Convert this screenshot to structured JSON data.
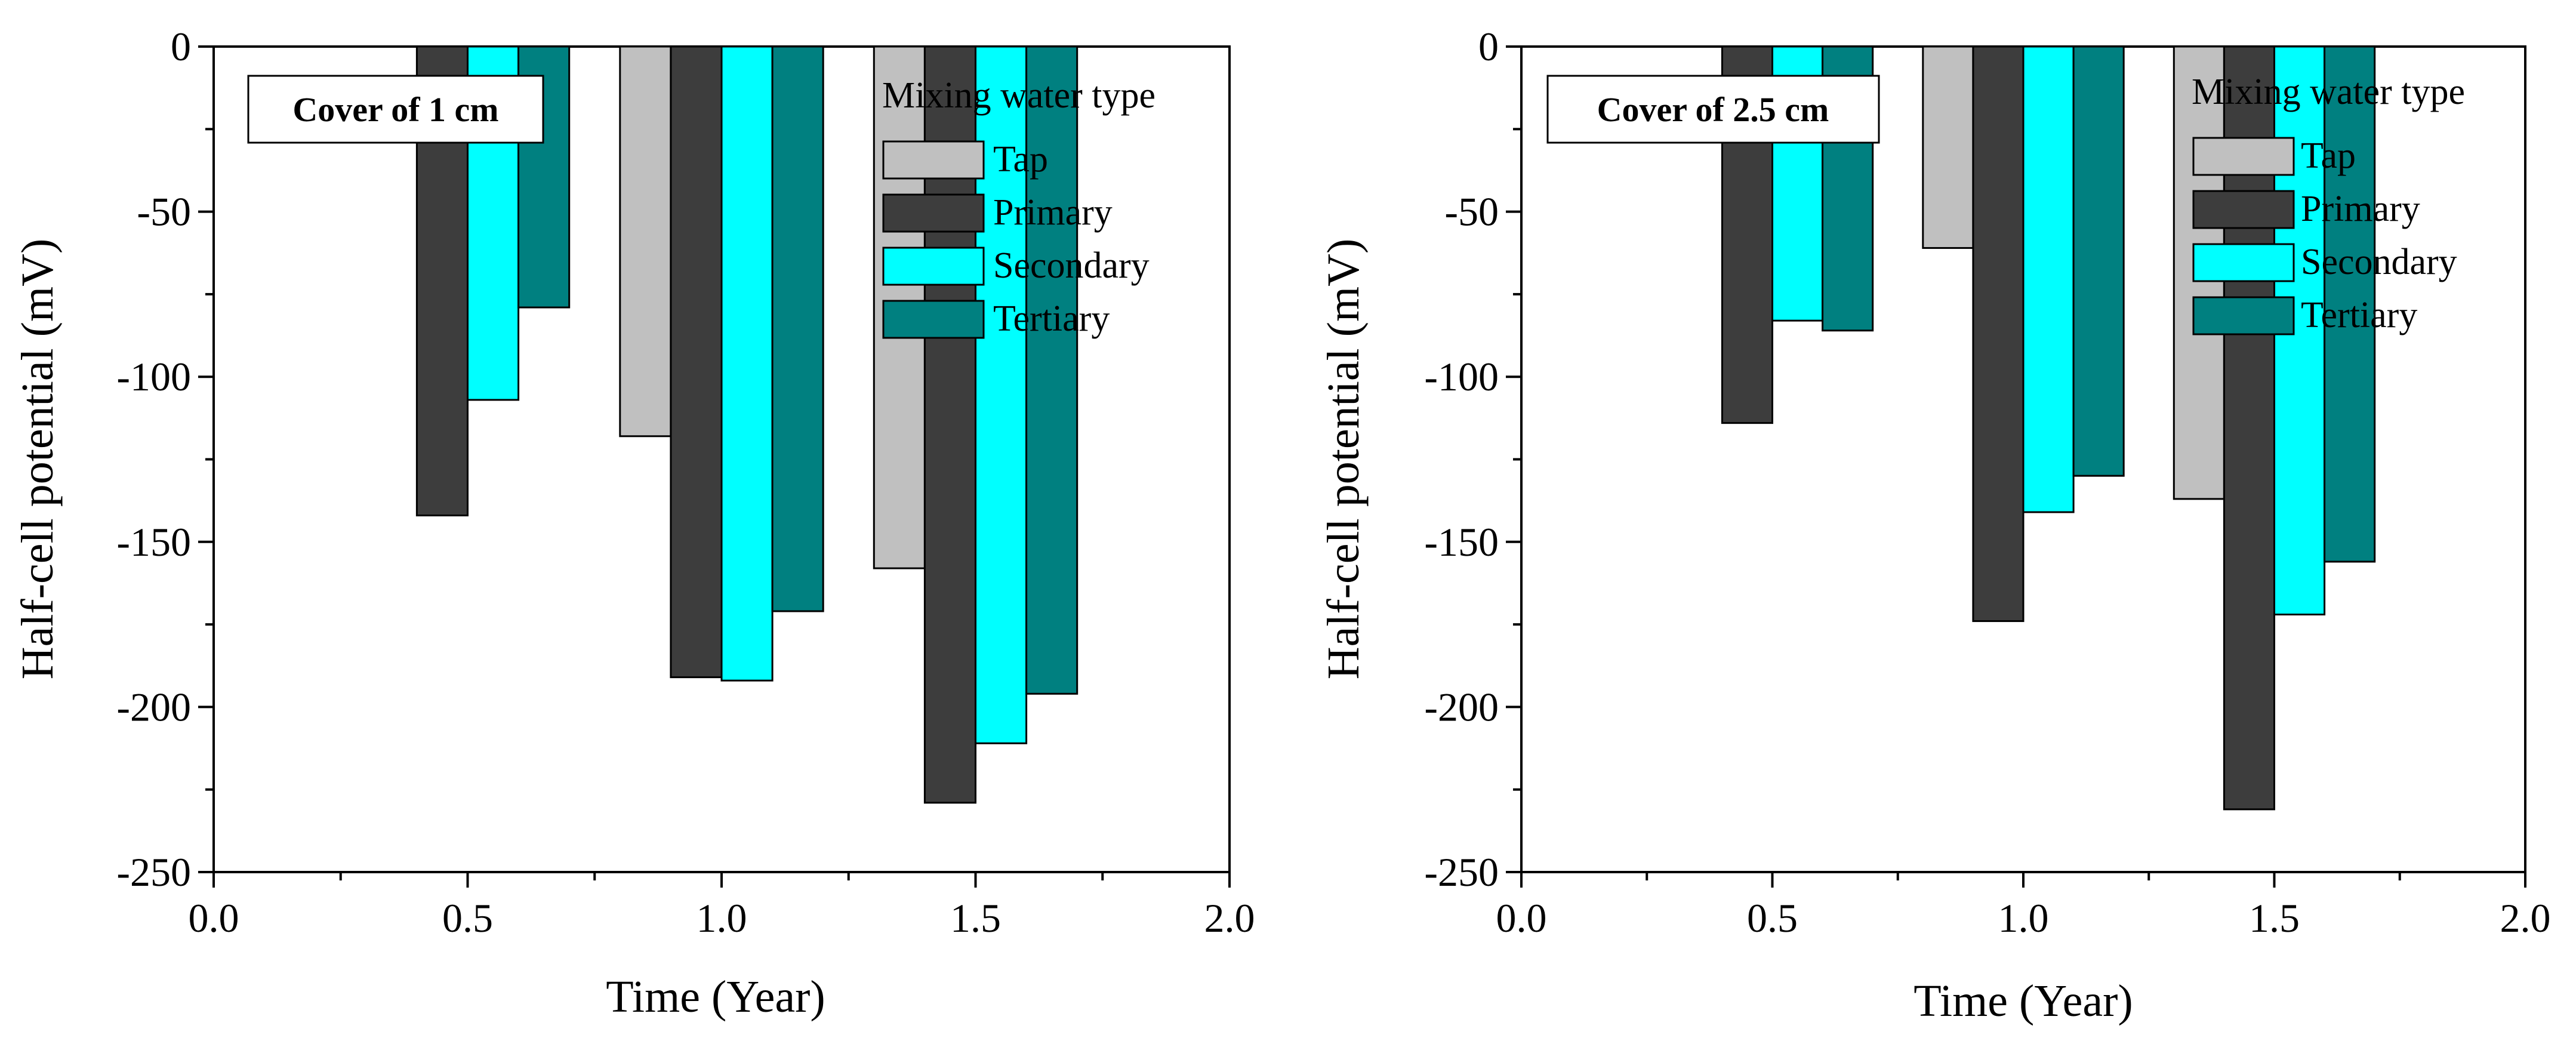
{
  "chart_data": [
    {
      "type": "bar",
      "panel": "left",
      "annotation": "Cover of 1 cm",
      "xlabel": "Time (Year)",
      "ylabel": "Half-cell potential (mV)",
      "xlim": [
        0.0,
        2.0
      ],
      "ylim": [
        -250,
        0
      ],
      "x_ticks": [
        "0.0",
        "0.5",
        "1.0",
        "1.5",
        "2.0"
      ],
      "y_ticks": [
        "0",
        "-50",
        "-100",
        "-150",
        "-200",
        "-250"
      ],
      "legend_title": "Mixing water type",
      "legend_position": "top-right",
      "bar_width": 0.1,
      "series": [
        {
          "name": "Tap",
          "color": "#c0c0c0",
          "x": [
            0.85,
            1.35
          ],
          "values": [
            -118,
            -158
          ]
        },
        {
          "name": "Primary",
          "color": "#3d3d3d",
          "x": [
            0.45,
            0.95,
            1.45
          ],
          "values": [
            -142,
            -191,
            -229
          ]
        },
        {
          "name": "Secondary",
          "color": "#00ffff",
          "x": [
            0.55,
            1.05,
            1.55
          ],
          "values": [
            -107,
            -192,
            -211
          ]
        },
        {
          "name": "Tertiary",
          "color": "#008080",
          "x": [
            0.65,
            1.15,
            1.65
          ],
          "values": [
            -79,
            -171,
            -196
          ]
        }
      ]
    },
    {
      "type": "bar",
      "panel": "right",
      "annotation": "Cover of 2.5 cm",
      "xlabel": "Time (Year)",
      "ylabel": "Half-cell potential (mV)",
      "xlim": [
        0.0,
        2.0
      ],
      "ylim": [
        -250,
        0
      ],
      "x_ticks": [
        "0.0",
        "0.5",
        "1.0",
        "1.5",
        "2.0"
      ],
      "y_ticks": [
        "0",
        "-50",
        "-100",
        "-150",
        "-200",
        "-250"
      ],
      "legend_title": "Mixing water type",
      "legend_position": "top-right",
      "bar_width": 0.1,
      "series": [
        {
          "name": "Tap",
          "color": "#c0c0c0",
          "x": [
            0.85,
            1.35
          ],
          "values": [
            -61,
            -137
          ]
        },
        {
          "name": "Primary",
          "color": "#3d3d3d",
          "x": [
            0.45,
            0.95,
            1.45
          ],
          "values": [
            -114,
            -174,
            -231
          ]
        },
        {
          "name": "Secondary",
          "color": "#00ffff",
          "x": [
            0.55,
            1.05,
            1.55
          ],
          "values": [
            -83,
            -141,
            -172
          ]
        },
        {
          "name": "Tertiary",
          "color": "#008080",
          "x": [
            0.65,
            1.15,
            1.65
          ],
          "values": [
            -86,
            -130,
            -156
          ]
        }
      ]
    }
  ]
}
